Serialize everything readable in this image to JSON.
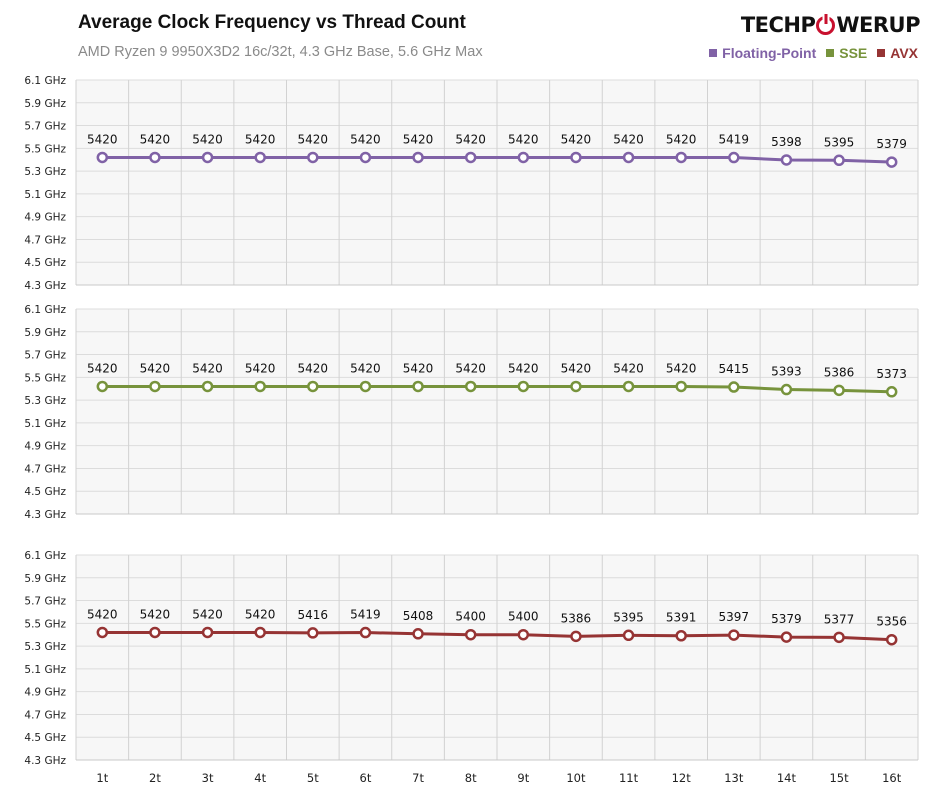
{
  "title": "Average Clock Frequency vs Thread Count",
  "subtitle": "AMD Ryzen 9 9950X3D2 16c/32t, 4.3 GHz Base, 5.6 GHz Max",
  "logo": {
    "left": "TECHP",
    "right": "WERUP"
  },
  "legend": [
    {
      "label": "Floating-Point",
      "color": "#8062a6"
    },
    {
      "label": "SSE",
      "color": "#77933c"
    },
    {
      "label": "AVX",
      "color": "#963434"
    }
  ],
  "chart_data": {
    "type": "line",
    "categories": [
      "1t",
      "2t",
      "3t",
      "4t",
      "5t",
      "6t",
      "7t",
      "8t",
      "9t",
      "10t",
      "11t",
      "12t",
      "13t",
      "14t",
      "15t",
      "16t"
    ],
    "ylim": [
      4.3,
      6.1
    ],
    "y_ticks": [
      "6.1 GHz",
      "5.9 GHz",
      "5.7 GHz",
      "5.5 GHz",
      "5.3 GHz",
      "5.1 GHz",
      "4.9 GHz",
      "4.7 GHz",
      "4.5 GHz",
      "4.3 GHz"
    ],
    "y_tick_values": [
      6.1,
      5.9,
      5.7,
      5.5,
      5.3,
      5.1,
      4.9,
      4.7,
      4.5,
      4.3
    ],
    "grid": true,
    "legend_position": "top-right",
    "series": [
      {
        "name": "Floating-Point",
        "color": "#8062a6",
        "values": [
          5420,
          5420,
          5420,
          5420,
          5420,
          5420,
          5420,
          5420,
          5420,
          5420,
          5420,
          5420,
          5419,
          5398,
          5395,
          5379
        ]
      },
      {
        "name": "SSE",
        "color": "#77933c",
        "values": [
          5420,
          5420,
          5420,
          5420,
          5420,
          5420,
          5420,
          5420,
          5420,
          5420,
          5420,
          5420,
          5415,
          5393,
          5386,
          5373
        ]
      },
      {
        "name": "AVX",
        "color": "#963434",
        "values": [
          5420,
          5420,
          5420,
          5420,
          5416,
          5419,
          5408,
          5400,
          5400,
          5386,
          5395,
          5391,
          5397,
          5379,
          5377,
          5356
        ]
      }
    ]
  }
}
